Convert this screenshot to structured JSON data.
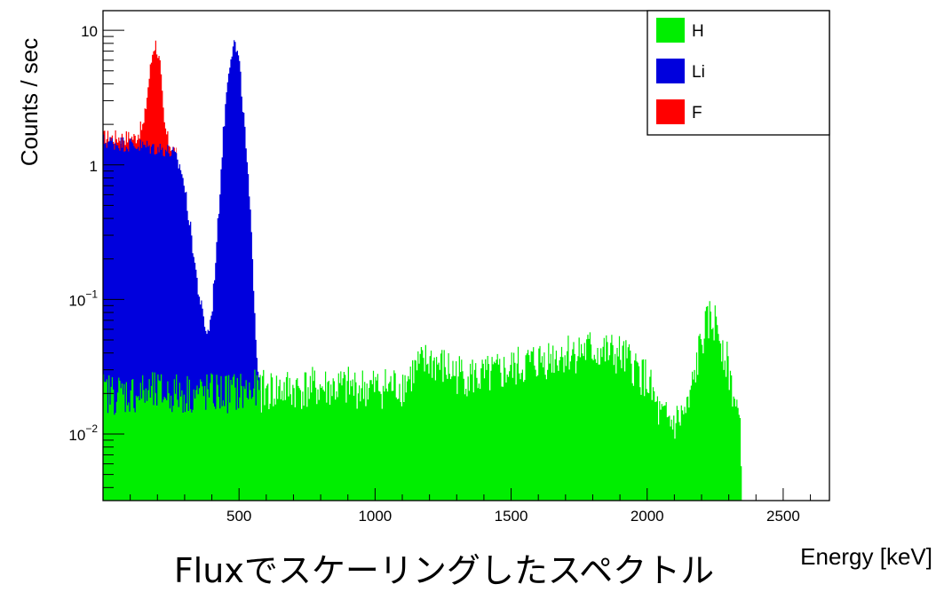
{
  "caption": "Fluxでスケーリングしたスペクトル",
  "chart_data": {
    "type": "histogram",
    "title": "",
    "xlabel": "Energy [keV]",
    "ylabel": "Counts / sec",
    "xlim": [
      0,
      2670
    ],
    "ylim": [
      0.0032,
      14
    ],
    "yscale": "log",
    "x_ticks": [
      500,
      1000,
      1500,
      2000,
      2500
    ],
    "x_tick_labels": [
      "500",
      "1000",
      "1500",
      "2000",
      "2500"
    ],
    "y_ticks": [
      0.01,
      0.1,
      1,
      10
    ],
    "y_tick_labels": [
      {
        "base": "10",
        "exp": "−2"
      },
      {
        "base": "10",
        "exp": "−1"
      },
      {
        "base": "1",
        "exp": ""
      },
      {
        "base": "10",
        "exp": ""
      }
    ],
    "legend": {
      "position": "top-right",
      "entries": [
        "H",
        "Li",
        "F"
      ]
    },
    "colors": {
      "H": "#00ee00",
      "Li": "#0000dd",
      "F": "#ff0000"
    },
    "series": [
      {
        "name": "F",
        "x": [
          0,
          60,
          120,
          150,
          170,
          185,
          195,
          210,
          225,
          240,
          270
        ],
        "y": [
          1.6,
          1.6,
          1.6,
          2.0,
          4.5,
          7.5,
          8.0,
          5.5,
          2.0,
          1.5,
          1.2
        ]
      },
      {
        "name": "Li",
        "x": [
          0,
          60,
          120,
          180,
          230,
          260,
          290,
          310,
          330,
          350,
          370,
          385,
          400,
          420,
          440,
          460,
          480,
          500,
          520,
          540,
          555,
          565,
          580
        ],
        "y": [
          1.5,
          1.45,
          1.4,
          1.35,
          1.3,
          1.2,
          0.9,
          0.5,
          0.25,
          0.12,
          0.07,
          0.055,
          0.08,
          0.3,
          1.5,
          5.0,
          8.5,
          6.0,
          2.0,
          0.5,
          0.12,
          0.04,
          0.02
        ]
      },
      {
        "name": "H",
        "x": [
          0,
          200,
          400,
          600,
          800,
          1000,
          1100,
          1150,
          1200,
          1300,
          1400,
          1500,
          1600,
          1700,
          1800,
          1900,
          1950,
          2000,
          2050,
          2100,
          2150,
          2200,
          2230,
          2260,
          2300,
          2340,
          2350,
          2670
        ],
        "y": [
          0.02,
          0.02,
          0.02,
          0.021,
          0.022,
          0.022,
          0.023,
          0.03,
          0.035,
          0.028,
          0.026,
          0.03,
          0.035,
          0.04,
          0.042,
          0.038,
          0.032,
          0.025,
          0.013,
          0.012,
          0.015,
          0.05,
          0.07,
          0.065,
          0.03,
          0.012,
          0.0032,
          0.0032
        ]
      }
    ]
  }
}
